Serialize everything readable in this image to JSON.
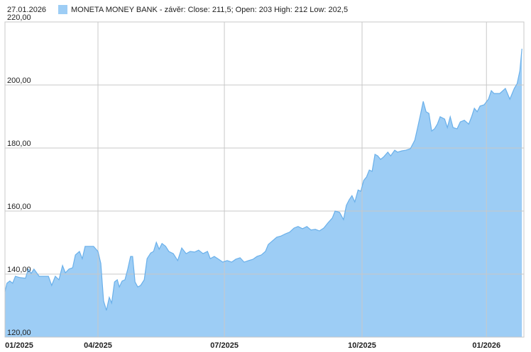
{
  "chart_data": {
    "type": "area",
    "date": "27.01.2026",
    "x": [
      0,
      0.05,
      0.12,
      0.19,
      0.26,
      0.37,
      0.51,
      0.58,
      0.65,
      0.72,
      0.85,
      0.97,
      1.08,
      1.16,
      1.25,
      1.34,
      1.43,
      1.5,
      1.59,
      1.68,
      1.75,
      1.85,
      1.92,
      1.99,
      2.1,
      2.2,
      2.31,
      2.38,
      2.45,
      2.52,
      2.59,
      2.65,
      2.72,
      2.79,
      2.84,
      2.91,
      2.98,
      3.05,
      3.12,
      3.17,
      3.23,
      3.3,
      3.37,
      3.46,
      3.53,
      3.62,
      3.69,
      3.76,
      3.83,
      3.9,
      3.99,
      4.07,
      4.18,
      4.29,
      4.39,
      4.5,
      4.6,
      4.71,
      4.81,
      4.92,
      5.03,
      5.1,
      5.2,
      5.31,
      5.41,
      5.52,
      5.63,
      5.73,
      5.84,
      5.94,
      6.05,
      6.16,
      6.26,
      6.37,
      6.47,
      6.54,
      6.65,
      6.75,
      6.86,
      6.97,
      7.07,
      7.18,
      7.28,
      7.39,
      7.5,
      7.6,
      7.71,
      7.81,
      7.92,
      8.02,
      8.13,
      8.2,
      8.31,
      8.41,
      8.48,
      8.55,
      8.62,
      8.69,
      8.77,
      8.84,
      8.91,
      8.98,
      9.05,
      9.12,
      9.19,
      9.26,
      9.33,
      9.4,
      9.51,
      9.58,
      9.68,
      9.75,
      9.86,
      9.96,
      10.07,
      10.18,
      10.25,
      10.32,
      10.39,
      10.46,
      10.53,
      10.6,
      10.67,
      10.74,
      10.81,
      10.92,
      10.99,
      11.06,
      11.13,
      11.23,
      11.31,
      11.41,
      11.52,
      11.59,
      11.66,
      11.73,
      11.8,
      11.9,
      12.01,
      12.08,
      12.15,
      12.29,
      12.43,
      12.54,
      12.65,
      12.72,
      12.79,
      12.84
    ],
    "series": [
      {
        "name": "MONETA MONEY BANK - závěr: Close: 211,5; Open: 203 High: 212 Low: 202,5",
        "color": "#9dcdf5",
        "line_color": "#6ab0ea",
        "values": [
          134.4,
          137.1,
          137.8,
          137.1,
          139.3,
          138.9,
          138.7,
          141.6,
          140.2,
          141.6,
          139.3,
          139.3,
          139.3,
          136.4,
          139.3,
          138.2,
          142.7,
          140.4,
          141.6,
          142.0,
          146.1,
          147.2,
          144.9,
          148.8,
          148.8,
          148.8,
          147.2,
          143.4,
          131.5,
          128.5,
          132.6,
          130.8,
          137.5,
          138.2,
          135.9,
          137.8,
          138.2,
          141.6,
          145.6,
          145.6,
          137.5,
          135.9,
          136.4,
          138.2,
          144.9,
          146.7,
          147.2,
          150.1,
          147.9,
          149.7,
          148.8,
          147.2,
          146.5,
          144.3,
          148.3,
          146.5,
          147.2,
          147.0,
          147.6,
          146.5,
          147.2,
          144.9,
          145.6,
          144.7,
          143.8,
          144.3,
          143.8,
          144.7,
          145.2,
          143.8,
          144.3,
          144.7,
          145.6,
          146.1,
          147.2,
          149.4,
          150.6,
          151.7,
          152.1,
          152.8,
          153.3,
          154.6,
          155.1,
          154.4,
          155.1,
          154.0,
          154.2,
          153.7,
          154.6,
          156.2,
          157.8,
          160.0,
          159.6,
          157.3,
          161.8,
          163.6,
          164.9,
          162.9,
          166.7,
          166.3,
          169.7,
          170.8,
          173.0,
          172.6,
          178.0,
          177.5,
          176.4,
          177.1,
          178.7,
          177.5,
          179.3,
          178.7,
          179.1,
          179.3,
          179.8,
          182.5,
          186.5,
          190.6,
          194.8,
          191.5,
          191.0,
          185.4,
          186.1,
          187.6,
          189.9,
          189.2,
          186.5,
          189.9,
          186.5,
          186.1,
          188.3,
          188.8,
          187.6,
          189.9,
          192.6,
          191.5,
          193.3,
          193.7,
          195.5,
          198.2,
          197.3,
          197.3,
          198.9,
          195.5,
          198.9,
          200.4,
          204.5,
          211.5
        ]
      }
    ],
    "xlim": [
      0,
      12.89
    ],
    "xticks": [
      {
        "value": 0,
        "label": "01/2025"
      },
      {
        "value": 2.31,
        "label": "04/2025"
      },
      {
        "value": 5.45,
        "label": "07/2025"
      },
      {
        "value": 8.87,
        "label": "10/2025"
      },
      {
        "value": 11.96,
        "label": "01/2026"
      }
    ],
    "ylim": [
      120,
      220
    ],
    "yticks": [
      {
        "value": 120,
        "label": "120,00"
      },
      {
        "value": 140,
        "label": "140,00"
      },
      {
        "value": 160,
        "label": "160,00"
      },
      {
        "value": 180,
        "label": "180,00"
      },
      {
        "value": 200,
        "label": "200,00"
      },
      {
        "value": 220,
        "label": "220,00"
      }
    ],
    "grid": true
  }
}
